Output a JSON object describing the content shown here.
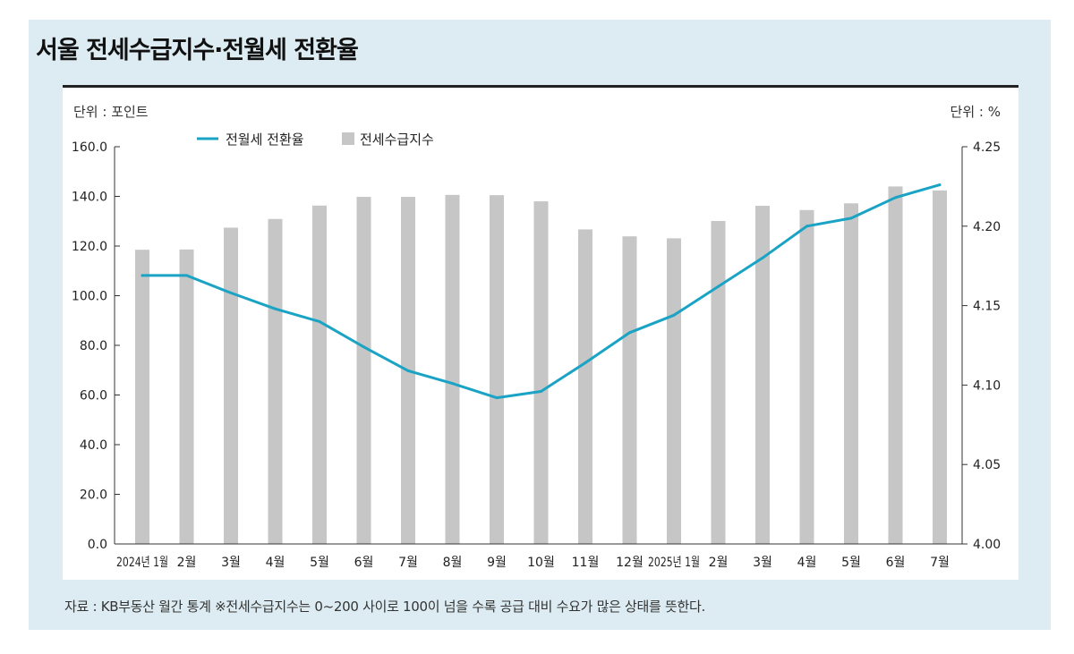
{
  "header": {
    "title": "서울 전세수급지수·전월세 전환율"
  },
  "units": {
    "left": "단위 : 포인트",
    "right": "단위 : %"
  },
  "footer": {
    "source": "자료 : KB부동산 월간 통계 ※전세수급지수는 0~200 사이로 100이 넘을 수록 공급 대비 수요가 많은 상태를 뜻한다."
  },
  "colors": {
    "line": "#1aa3c4",
    "bar": "#c6c6c6",
    "panel": "#dcecf2"
  },
  "chart_data": {
    "type": "bar",
    "categories": [
      "2024년 1월",
      "2월",
      "3월",
      "4월",
      "5월",
      "6월",
      "7월",
      "8월",
      "9월",
      "10월",
      "11월",
      "12월",
      "2025년 1월",
      "2월",
      "3월",
      "4월",
      "5월",
      "6월",
      "7월"
    ],
    "series": [
      {
        "name": "전세수급지수",
        "type": "bar",
        "axis": "left",
        "values": [
          118.5,
          118.6,
          127.4,
          130.9,
          136.3,
          139.8,
          139.8,
          140.6,
          140.5,
          138.0,
          126.7,
          123.9,
          123.1,
          130.1,
          136.2,
          134.5,
          137.2,
          144.0,
          142.4
        ]
      },
      {
        "name": "전월세 전환율",
        "type": "line",
        "axis": "right",
        "values": [
          4.169,
          4.169,
          4.158,
          4.148,
          4.14,
          4.124,
          4.109,
          4.101,
          4.092,
          4.096,
          4.114,
          4.133,
          4.144,
          4.162,
          4.18,
          4.2,
          4.205,
          4.218,
          4.226
        ]
      }
    ],
    "y_left": {
      "ylim": [
        0,
        160
      ],
      "ticks": [
        "0.0",
        "20.0",
        "40.0",
        "60.0",
        "80.0",
        "100.0",
        "120.0",
        "140.0",
        "160.0"
      ]
    },
    "y_right": {
      "ylim": [
        4.0,
        4.25
      ],
      "ticks": [
        "4.00",
        "4.05",
        "4.10",
        "4.15",
        "4.20",
        "4.25"
      ]
    },
    "legend": {
      "position": "top-left",
      "entries": [
        "전월세 전환율",
        "전세수급지수"
      ]
    },
    "grid": false
  }
}
